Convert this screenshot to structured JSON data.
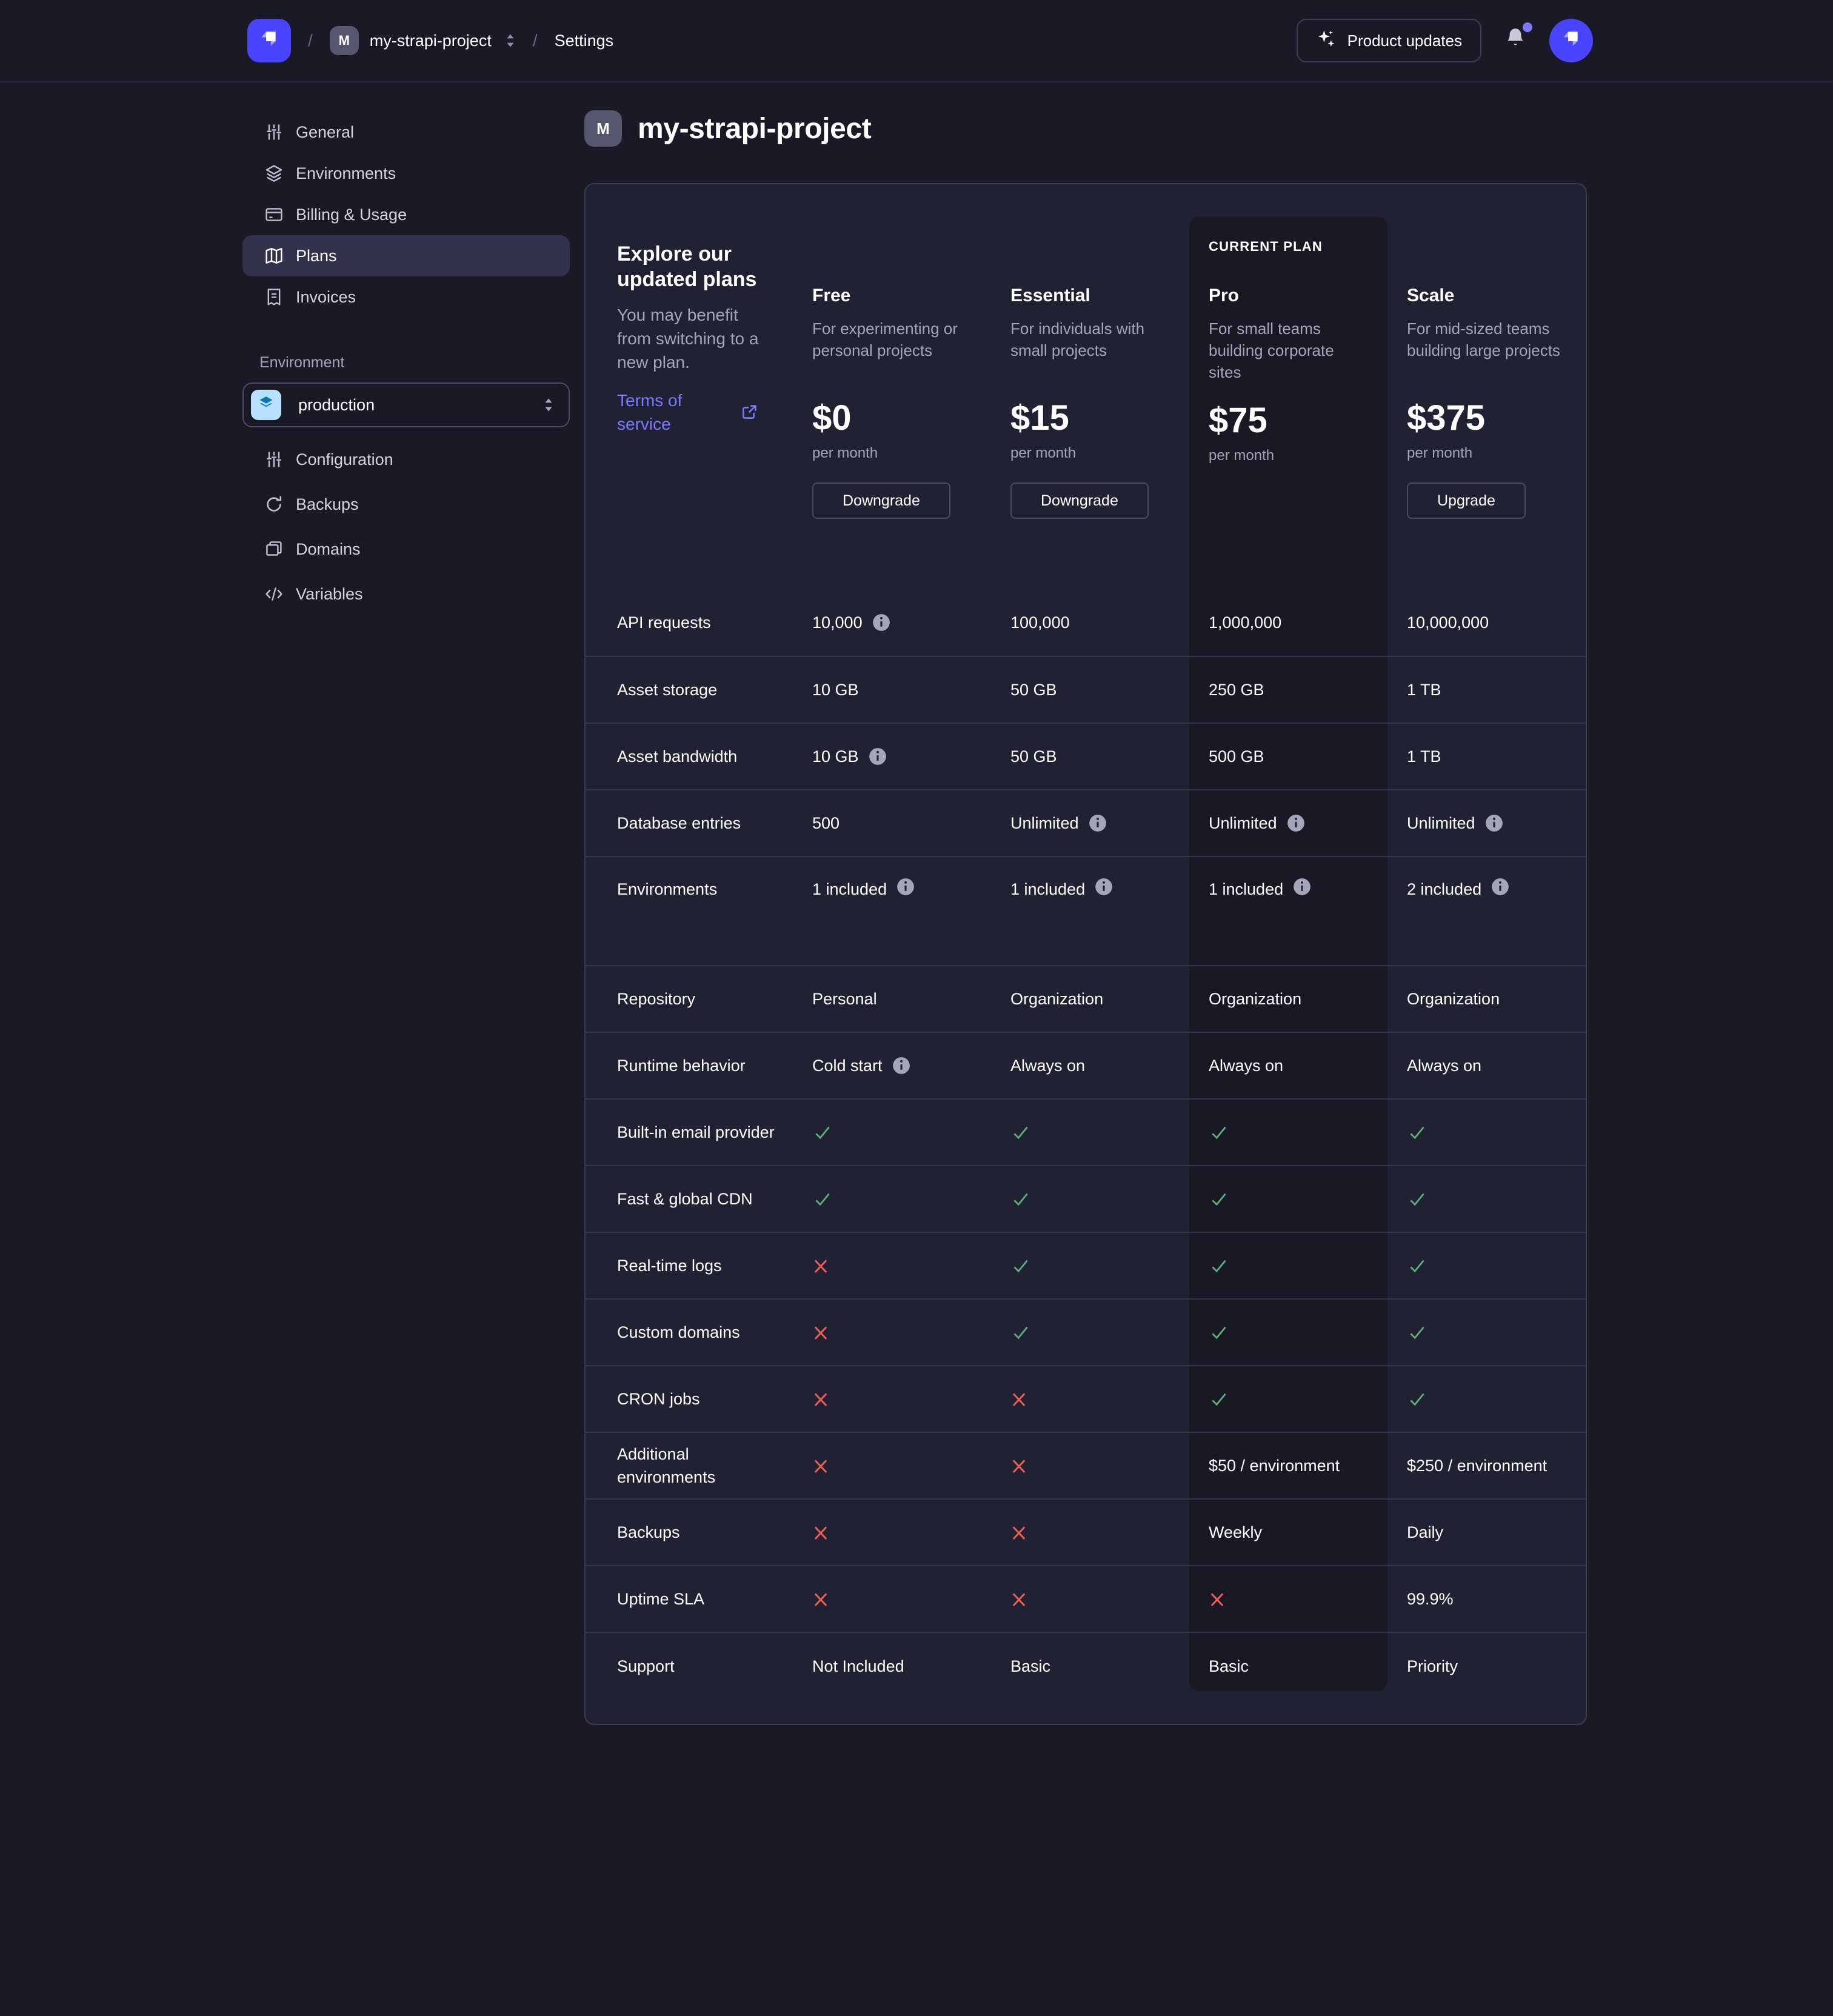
{
  "topbar": {
    "separator": "/",
    "project_initial": "M",
    "project": "my-strapi-project",
    "section": "Settings",
    "product_updates_label": "Product updates",
    "logo_icon": "strapi-logo-icon",
    "sparkle_icon": "sparkle-icon",
    "bell_icon": "bell-icon",
    "avatar_icon": "strapi-avatar-icon"
  },
  "sidebar": {
    "project_items": [
      {
        "label": "General",
        "icon": "sliders-icon",
        "active": false
      },
      {
        "label": "Environments",
        "icon": "layers-icon",
        "active": false
      },
      {
        "label": "Billing & Usage",
        "icon": "credit-card-icon",
        "active": false
      },
      {
        "label": "Plans",
        "icon": "map-icon",
        "active": true
      },
      {
        "label": "Invoices",
        "icon": "invoice-icon",
        "active": false
      }
    ],
    "environment_label": "Environment",
    "environment_select": {
      "value": "production",
      "icon": "layers-icon"
    },
    "environment_items": [
      {
        "label": "Configuration",
        "icon": "sliders-icon"
      },
      {
        "label": "Backups",
        "icon": "refresh-icon"
      },
      {
        "label": "Domains",
        "icon": "stack-icon"
      },
      {
        "label": "Variables",
        "icon": "code-icon"
      }
    ]
  },
  "main": {
    "project_initial": "M",
    "title": "my-strapi-project",
    "intro": {
      "heading": "Explore our updated plans",
      "body": "You may benefit from switching to a new plan.",
      "link_label": "Terms of service",
      "link_icon": "external-link-icon"
    },
    "current_plan_label": "CURRENT PLAN",
    "plans": [
      {
        "name": "Free",
        "description": "For experimenting or personal projects",
        "price": "$0",
        "period": "per month",
        "action": "Downgrade",
        "current": false
      },
      {
        "name": "Essential",
        "description": "For individuals with small projects",
        "price": "$15",
        "period": "per month",
        "action": "Downgrade",
        "current": false
      },
      {
        "name": "Pro",
        "description": "For small teams building corporate sites",
        "price": "$75",
        "period": "per month",
        "action": null,
        "current": true
      },
      {
        "name": "Scale",
        "description": "For mid-sized teams building large projects",
        "price": "$375",
        "period": "per month",
        "action": "Upgrade",
        "current": false
      }
    ],
    "features": [
      {
        "label": "API requests",
        "cells": [
          {
            "text": "10,000",
            "info": true
          },
          {
            "text": "100,000"
          },
          {
            "text": "1,000,000"
          },
          {
            "text": "10,000,000"
          }
        ]
      },
      {
        "label": "Asset storage",
        "cells": [
          {
            "text": "10 GB"
          },
          {
            "text": "50 GB"
          },
          {
            "text": "250 GB"
          },
          {
            "text": "1 TB"
          }
        ]
      },
      {
        "label": "Asset bandwidth",
        "cells": [
          {
            "text": "10 GB",
            "info": true
          },
          {
            "text": "50 GB"
          },
          {
            "text": "500 GB"
          },
          {
            "text": "1 TB"
          }
        ]
      },
      {
        "label": "Database entries",
        "cells": [
          {
            "text": "500"
          },
          {
            "text": "Unlimited",
            "info": true
          },
          {
            "text": "Unlimited",
            "info": true
          },
          {
            "text": "Unlimited",
            "info": true
          }
        ]
      },
      {
        "label": "Environments",
        "tall": true,
        "cells": [
          {
            "text": "1 included",
            "info": true
          },
          {
            "text": "1 included",
            "info": true
          },
          {
            "text": "1 included",
            "info": true
          },
          {
            "text": "2 included",
            "info": true
          }
        ]
      },
      {
        "label": "Repository",
        "cells": [
          {
            "text": "Personal"
          },
          {
            "text": "Organization"
          },
          {
            "text": "Organization"
          },
          {
            "text": "Organization"
          }
        ]
      },
      {
        "label": "Runtime behavior",
        "cells": [
          {
            "text": "Cold start",
            "info": true
          },
          {
            "text": "Always on"
          },
          {
            "text": "Always on"
          },
          {
            "text": "Always on"
          }
        ]
      },
      {
        "label": "Built-in email provider",
        "cells": [
          {
            "check": true
          },
          {
            "check": true
          },
          {
            "check": true
          },
          {
            "check": true
          }
        ]
      },
      {
        "label": "Fast & global CDN",
        "cells": [
          {
            "check": true
          },
          {
            "check": true
          },
          {
            "check": true
          },
          {
            "check": true
          }
        ]
      },
      {
        "label": "Real-time logs",
        "cells": [
          {
            "cross": true
          },
          {
            "check": true
          },
          {
            "check": true
          },
          {
            "check": true
          }
        ]
      },
      {
        "label": "Custom domains",
        "cells": [
          {
            "cross": true
          },
          {
            "check": true
          },
          {
            "check": true
          },
          {
            "check": true
          }
        ]
      },
      {
        "label": "CRON jobs",
        "cells": [
          {
            "cross": true
          },
          {
            "cross": true
          },
          {
            "check": true
          },
          {
            "check": true
          }
        ]
      },
      {
        "label": "Additional environments",
        "cells": [
          {
            "cross": true
          },
          {
            "cross": true
          },
          {
            "text": "$50 / environment"
          },
          {
            "text": "$250 / environment"
          }
        ]
      },
      {
        "label": "Backups",
        "cells": [
          {
            "cross": true
          },
          {
            "cross": true
          },
          {
            "text": "Weekly"
          },
          {
            "text": "Daily"
          }
        ]
      },
      {
        "label": "Uptime SLA",
        "cells": [
          {
            "cross": true
          },
          {
            "cross": true
          },
          {
            "cross": true
          },
          {
            "text": "99.9%"
          }
        ]
      },
      {
        "label": "Support",
        "cells": [
          {
            "text": "Not Included"
          },
          {
            "text": "Basic"
          },
          {
            "text": "Basic"
          },
          {
            "text": "Priority"
          }
        ]
      }
    ]
  },
  "colors": {
    "background": "#1a1a27",
    "card": "#212134",
    "current_column": "#191926",
    "accent": "#4945ff",
    "link": "#7b79ff",
    "success": "#5cb176",
    "danger": "#ee5e52",
    "muted_text": "#a5a5ba"
  }
}
